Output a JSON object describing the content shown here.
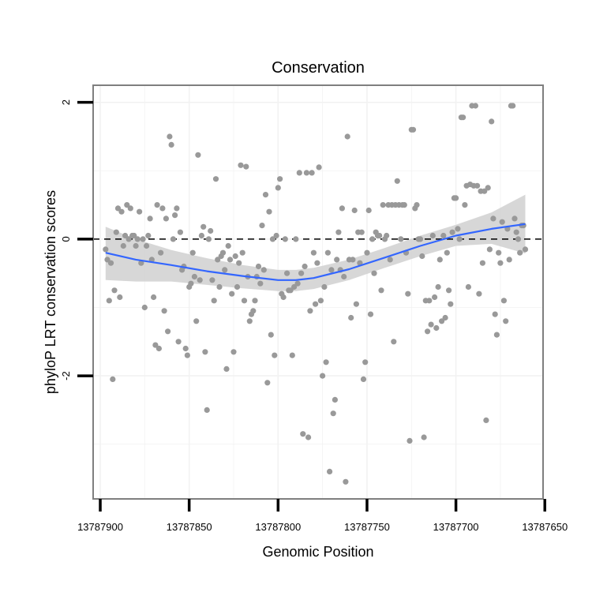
{
  "chart_data": {
    "type": "scatter",
    "title": "Conservation",
    "xlabel": "Genomic Position",
    "ylabel": "phyloP LRT conservation scores",
    "x_reversed": true,
    "xlim": [
      13787904,
      13787651
    ],
    "ylim": [
      -3.8,
      2.25
    ],
    "x_ticks": [
      13787900,
      13787850,
      13787800,
      13787750,
      13787700,
      13787650
    ],
    "x_tick_labels": [
      "13787900",
      "13787850",
      "13787800",
      "13787750",
      "13787700",
      "13787650"
    ],
    "y_ticks": [
      2,
      0,
      -2
    ],
    "y_tick_labels": [
      "2",
      "0",
      "-2"
    ],
    "grid": true,
    "reference_line": {
      "y": 0,
      "style": "dashed"
    },
    "colors": {
      "points": "#999999",
      "smooth_line": "#3366ff",
      "confidence_band": "#d3d3d3",
      "grid": "#f2f2f2",
      "panel_border": "#7f7f7f"
    },
    "points": [
      [
        13787897,
        -0.15
      ],
      [
        13787896,
        -0.3
      ],
      [
        13787894,
        -0.35
      ],
      [
        13787895,
        -0.9
      ],
      [
        13787893,
        -2.05
      ],
      [
        13787892,
        -0.75
      ],
      [
        13787891,
        0.1
      ],
      [
        13787890,
        0.45
      ],
      [
        13787889,
        -0.85
      ],
      [
        13787888,
        0.4
      ],
      [
        13787887,
        -0.1
      ],
      [
        13787886,
        0.05
      ],
      [
        13787885,
        0.5
      ],
      [
        13787884,
        0.0
      ],
      [
        13787883,
        0.45
      ],
      [
        13787882,
        0.05
      ],
      [
        13787881,
        0.05
      ],
      [
        13787880,
        -0.1
      ],
      [
        13787879,
        0.0
      ],
      [
        13787878,
        0.4
      ],
      [
        13787877,
        -0.35
      ],
      [
        13787876,
        0.0
      ],
      [
        13787875,
        -1.0
      ],
      [
        13787874,
        -0.1
      ],
      [
        13787873,
        0.05
      ],
      [
        13787872,
        0.3
      ],
      [
        13787871,
        -0.3
      ],
      [
        13787870,
        -0.85
      ],
      [
        13787869,
        -1.55
      ],
      [
        13787868,
        0.5
      ],
      [
        13787867,
        -1.6
      ],
      [
        13787866,
        -0.2
      ],
      [
        13787865,
        0.45
      ],
      [
        13787864,
        -1.05
      ],
      [
        13787863,
        0.3
      ],
      [
        13787862,
        -1.35
      ],
      [
        13787861,
        1.5
      ],
      [
        13787860,
        1.38
      ],
      [
        13787859,
        0.0
      ],
      [
        13787858,
        0.35
      ],
      [
        13787857,
        0.45
      ],
      [
        13787856,
        -1.5
      ],
      [
        13787855,
        0.1
      ],
      [
        13787854,
        -0.45
      ],
      [
        13787853,
        -0.4
      ],
      [
        13787852,
        -1.6
      ],
      [
        13787851,
        -1.7
      ],
      [
        13787850,
        -0.7
      ],
      [
        13787849,
        -0.65
      ],
      [
        13787848,
        -0.2
      ],
      [
        13787847,
        -0.55
      ],
      [
        13787846,
        -1.2
      ],
      [
        13787845,
        1.23
      ],
      [
        13787844,
        -0.6
      ],
      [
        13787843,
        0.05
      ],
      [
        13787842,
        0.18
      ],
      [
        13787841,
        -1.65
      ],
      [
        13787840,
        -2.5
      ],
      [
        13787839,
        0.0
      ],
      [
        13787838,
        0.12
      ],
      [
        13787837,
        -0.6
      ],
      [
        13787836,
        -0.9
      ],
      [
        13787835,
        0.88
      ],
      [
        13787834,
        -0.3
      ],
      [
        13787833,
        -0.7
      ],
      [
        13787832,
        -0.25
      ],
      [
        13787831,
        -0.2
      ],
      [
        13787830,
        -0.45
      ],
      [
        13787829,
        -1.9
      ],
      [
        13787828,
        -0.1
      ],
      [
        13787827,
        -0.3
      ],
      [
        13787826,
        -0.8
      ],
      [
        13787825,
        -1.65
      ],
      [
        13787824,
        -0.25
      ],
      [
        13787823,
        -0.7
      ],
      [
        13787822,
        -0.35
      ],
      [
        13787821,
        1.08
      ],
      [
        13787820,
        -0.2
      ],
      [
        13787819,
        -0.9
      ],
      [
        13787818,
        1.06
      ],
      [
        13787817,
        -0.55
      ],
      [
        13787816,
        -1.2
      ],
      [
        13787815,
        -1.1
      ],
      [
        13787814,
        -1.05
      ],
      [
        13787813,
        -0.9
      ],
      [
        13787812,
        -0.55
      ],
      [
        13787811,
        -0.4
      ],
      [
        13787810,
        -0.65
      ],
      [
        13787809,
        0.2
      ],
      [
        13787808,
        -0.45
      ],
      [
        13787807,
        0.65
      ],
      [
        13787806,
        -2.1
      ],
      [
        13787805,
        0.4
      ],
      [
        13787804,
        -1.4
      ],
      [
        13787803,
        0.0
      ],
      [
        13787802,
        -1.7
      ],
      [
        13787801,
        0.05
      ],
      [
        13787800,
        0.75
      ],
      [
        13787799,
        0.88
      ],
      [
        13787798,
        -0.8
      ],
      [
        13787797,
        -0.85
      ],
      [
        13787796,
        0.0
      ],
      [
        13787795,
        -0.5
      ],
      [
        13787794,
        -0.75
      ],
      [
        13787793,
        -0.75
      ],
      [
        13787792,
        -1.7
      ],
      [
        13787791,
        -0.7
      ],
      [
        13787790,
        0.0
      ],
      [
        13787789,
        -0.65
      ],
      [
        13787788,
        0.97
      ],
      [
        13787787,
        -0.5
      ],
      [
        13787786,
        -2.85
      ],
      [
        13787785,
        -0.4
      ],
      [
        13787784,
        0.97
      ],
      [
        13787783,
        -2.9
      ],
      [
        13787782,
        -1.05
      ],
      [
        13787781,
        0.97
      ],
      [
        13787780,
        -0.2
      ],
      [
        13787779,
        -0.95
      ],
      [
        13787778,
        -0.35
      ],
      [
        13787777,
        1.05
      ],
      [
        13787776,
        -0.9
      ],
      [
        13787775,
        -2.0
      ],
      [
        13787774,
        -0.7
      ],
      [
        13787773,
        -1.8
      ],
      [
        13787772,
        -0.2
      ],
      [
        13787771,
        -3.4
      ],
      [
        13787770,
        -0.45
      ],
      [
        13787769,
        -2.55
      ],
      [
        13787768,
        -2.35
      ],
      [
        13787767,
        -0.3
      ],
      [
        13787766,
        0.1
      ],
      [
        13787765,
        -0.45
      ],
      [
        13787764,
        0.45
      ],
      [
        13787763,
        -0.55
      ],
      [
        13787762,
        -3.55
      ],
      [
        13787761,
        1.5
      ],
      [
        13787760,
        -0.3
      ],
      [
        13787759,
        -1.15
      ],
      [
        13787758,
        -0.3
      ],
      [
        13787757,
        0.42
      ],
      [
        13787756,
        -0.95
      ],
      [
        13787755,
        0.1
      ],
      [
        13787754,
        -0.35
      ],
      [
        13787753,
        0.1
      ],
      [
        13787752,
        -2.05
      ],
      [
        13787751,
        -1.8
      ],
      [
        13787750,
        -0.2
      ],
      [
        13787749,
        0.42
      ],
      [
        13787748,
        -1.1
      ],
      [
        13787747,
        0.0
      ],
      [
        13787746,
        -0.5
      ],
      [
        13787745,
        0.1
      ],
      [
        13787744,
        0.05
      ],
      [
        13787743,
        0.05
      ],
      [
        13787742,
        -0.75
      ],
      [
        13787741,
        0.5
      ],
      [
        13787740,
        0.0
      ],
      [
        13787739,
        0.05
      ],
      [
        13787738,
        0.5
      ],
      [
        13787737,
        -0.3
      ],
      [
        13787736,
        0.5
      ],
      [
        13787735,
        -1.5
      ],
      [
        13787734,
        0.5
      ],
      [
        13787733,
        0.85
      ],
      [
        13787732,
        0.5
      ],
      [
        13787731,
        0.0
      ],
      [
        13787730,
        0.5
      ],
      [
        13787729,
        0.5
      ],
      [
        13787728,
        -0.2
      ],
      [
        13787727,
        -0.8
      ],
      [
        13787726,
        -2.95
      ],
      [
        13787725,
        1.6
      ],
      [
        13787724,
        1.6
      ],
      [
        13787723,
        0.45
      ],
      [
        13787722,
        0.5
      ],
      [
        13787721,
        0.0
      ],
      [
        13787720,
        0.0
      ],
      [
        13787719,
        -0.25
      ],
      [
        13787718,
        -2.9
      ],
      [
        13787717,
        -0.9
      ],
      [
        13787716,
        -1.35
      ],
      [
        13787715,
        -0.9
      ],
      [
        13787714,
        -1.25
      ],
      [
        13787713,
        0.05
      ],
      [
        13787712,
        -0.85
      ],
      [
        13787711,
        -1.3
      ],
      [
        13787710,
        -0.7
      ],
      [
        13787709,
        -0.3
      ],
      [
        13787708,
        -1.2
      ],
      [
        13787707,
        0.05
      ],
      [
        13787706,
        -1.15
      ],
      [
        13787705,
        -0.2
      ],
      [
        13787704,
        -0.75
      ],
      [
        13787703,
        -0.95
      ],
      [
        13787702,
        0.1
      ],
      [
        13787701,
        0.6
      ],
      [
        13787700,
        0.6
      ],
      [
        13787699,
        0.15
      ],
      [
        13787698,
        0.0
      ],
      [
        13787697,
        1.78
      ],
      [
        13787696,
        1.78
      ],
      [
        13787695,
        0.5
      ],
      [
        13787694,
        0.78
      ],
      [
        13787693,
        -0.7
      ],
      [
        13787692,
        0.8
      ],
      [
        13787691,
        1.95
      ],
      [
        13787690,
        0.78
      ],
      [
        13787689,
        1.95
      ],
      [
        13787688,
        0.78
      ],
      [
        13787687,
        -0.8
      ],
      [
        13787686,
        0.7
      ],
      [
        13787685,
        -0.35
      ],
      [
        13787684,
        0.7
      ],
      [
        13787683,
        -2.65
      ],
      [
        13787682,
        0.75
      ],
      [
        13787681,
        -0.15
      ],
      [
        13787680,
        1.72
      ],
      [
        13787679,
        0.3
      ],
      [
        13787678,
        -1.1
      ],
      [
        13787677,
        -1.4
      ],
      [
        13787676,
        -0.2
      ],
      [
        13787675,
        -0.35
      ],
      [
        13787674,
        0.25
      ],
      [
        13787673,
        -0.9
      ],
      [
        13787672,
        -1.2
      ],
      [
        13787671,
        0.15
      ],
      [
        13787670,
        -0.3
      ],
      [
        13787669,
        1.95
      ],
      [
        13787668,
        1.95
      ],
      [
        13787667,
        0.3
      ],
      [
        13787666,
        0.1
      ],
      [
        13787665,
        0.0
      ],
      [
        13787664,
        -0.2
      ],
      [
        13787663,
        0.2
      ],
      [
        13787662,
        0.2
      ],
      [
        13787661,
        -0.15
      ]
    ],
    "smooth": [
      [
        13787897,
        -0.2
      ],
      [
        13787880,
        -0.3
      ],
      [
        13787860,
        -0.38
      ],
      [
        13787840,
        -0.47
      ],
      [
        13787820,
        -0.54
      ],
      [
        13787800,
        -0.6
      ],
      [
        13787790,
        -0.6
      ],
      [
        13787780,
        -0.57
      ],
      [
        13787760,
        -0.44
      ],
      [
        13787740,
        -0.27
      ],
      [
        13787720,
        -0.1
      ],
      [
        13787700,
        0.05
      ],
      [
        13787680,
        0.15
      ],
      [
        13787661,
        0.22
      ]
    ],
    "smooth_band": [
      [
        13787897,
        0.18,
        -0.6
      ],
      [
        13787880,
        0.0,
        -0.62
      ],
      [
        13787860,
        -0.16,
        -0.62
      ],
      [
        13787840,
        -0.28,
        -0.67
      ],
      [
        13787820,
        -0.38,
        -0.72
      ],
      [
        13787800,
        -0.45,
        -0.76
      ],
      [
        13787790,
        -0.45,
        -0.76
      ],
      [
        13787780,
        -0.42,
        -0.73
      ],
      [
        13787760,
        -0.3,
        -0.6
      ],
      [
        13787740,
        -0.13,
        -0.42
      ],
      [
        13787720,
        0.05,
        -0.25
      ],
      [
        13787700,
        0.21,
        -0.1
      ],
      [
        13787680,
        0.39,
        -0.07
      ],
      [
        13787661,
        0.65,
        -0.21
      ]
    ]
  }
}
